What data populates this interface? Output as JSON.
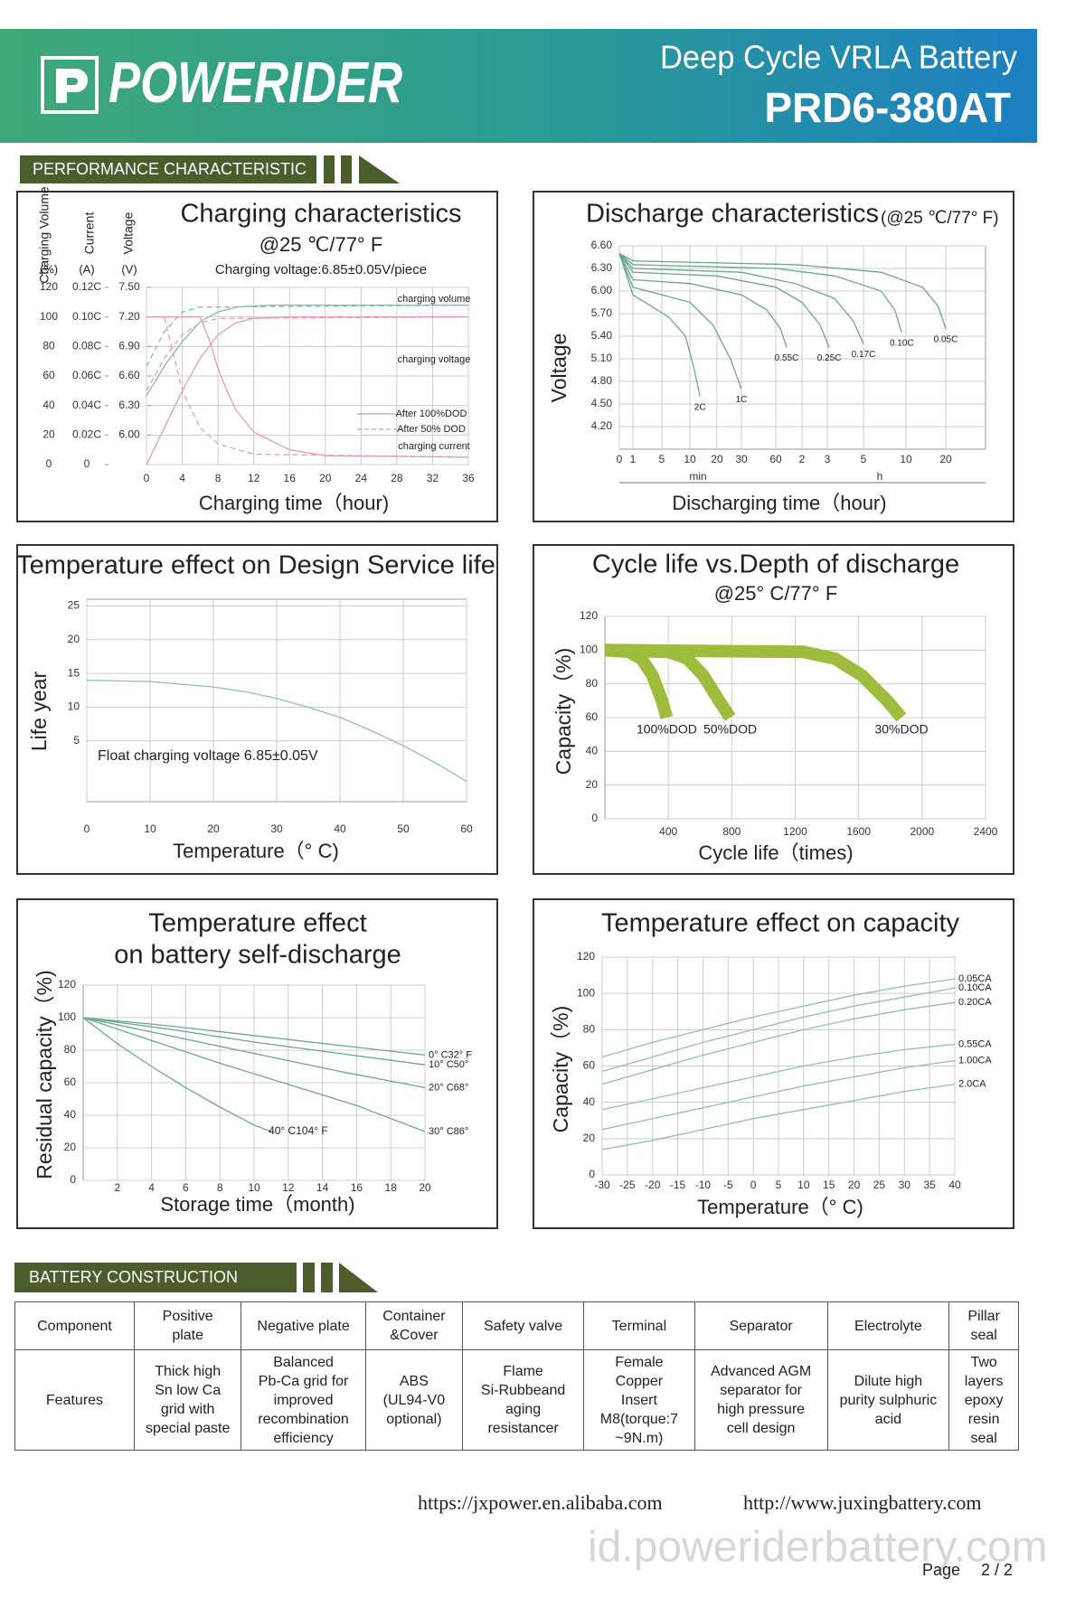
{
  "header": {
    "brand": "POWERIDER",
    "subtitle": "Deep Cycle    VRLA Battery",
    "model": "PRD6-380AT"
  },
  "sections": {
    "performance": "PERFORMANCE    CHARACTERISTIC",
    "construction": "BATTERY    CONSTRUCTION"
  },
  "chart_data": [
    {
      "type": "line",
      "title": "Charging characteristics",
      "subtitle": "@25 ℃/77° F",
      "note": "Charging voltage:6.85±0.05V/piece",
      "xlabel": "Charging time（hour)",
      "xlim": [
        0,
        36
      ],
      "xticks": [
        0,
        4,
        8,
        12,
        16,
        20,
        24,
        28,
        32,
        36
      ],
      "ylabel": "Charging Volume",
      "yunit": "(%)",
      "ylim": [
        0,
        120
      ],
      "yticks": [
        0,
        20,
        40,
        60,
        80,
        100,
        120
      ],
      "y2label": "Current",
      "y2unit": "(A)",
      "y2lim": [
        0,
        0.12
      ],
      "y2ticks": [
        0,
        {
          "value": 0.02,
          "label": "0.02C"
        },
        {
          "value": 0.04,
          "label": "0.04C"
        },
        {
          "value": 0.06,
          "label": "0.06C"
        },
        {
          "value": 0.08,
          "label": "0.08C"
        },
        {
          "value": 0.1,
          "label": "0.10C"
        },
        {
          "value": 0.12,
          "label": "0.12C"
        }
      ],
      "y3label": "Voltage",
      "y3unit": "(V)",
      "y3lim": [
        5.7,
        7.5
      ],
      "y3ticks": [
        {
          "value": 6.0,
          "label": "6.00"
        },
        {
          "value": 6.3,
          "label": "6.30"
        },
        {
          "value": 6.6,
          "label": "6.60"
        },
        {
          "value": 6.9,
          "label": "6.90"
        },
        {
          "value": 7.2,
          "label": "7.20"
        },
        {
          "value": 7.5,
          "label": "7.50"
        }
      ],
      "grid": true,
      "series": [
        {
          "color": "#e79bb7",
          "x": [
            0,
            2,
            4,
            6,
            8,
            10,
            12,
            16,
            36
          ],
          "values": [
            0,
            25,
            50,
            72,
            88,
            96,
            99,
            100,
            100
          ]
        },
        {
          "color": "#e79bb7",
          "dashed": true,
          "x": [
            0,
            2,
            4,
            6,
            8,
            36
          ],
          "values": [
            50,
            72,
            88,
            96,
            99,
            100
          ]
        },
        {
          "color": "#7cc29a",
          "axis": "y3",
          "x": [
            0,
            2,
            4,
            6,
            8,
            10,
            14,
            36
          ],
          "values": [
            6.4,
            6.7,
            6.95,
            7.15,
            7.25,
            7.3,
            7.32,
            7.32
          ]
        },
        {
          "color": "#7cc29a",
          "axis": "y3",
          "dashed": true,
          "x": [
            0,
            2,
            4,
            6,
            36
          ],
          "values": [
            6.7,
            7.05,
            7.25,
            7.3,
            7.32
          ]
        },
        {
          "color": "#e79bb7",
          "axis": "y2",
          "x": [
            0,
            6,
            7,
            8,
            9,
            10,
            12,
            16,
            20,
            36
          ],
          "values": [
            0.1,
            0.1,
            0.085,
            0.065,
            0.05,
            0.037,
            0.022,
            0.01,
            0.006,
            0.005
          ]
        },
        {
          "color": "#e79bb7",
          "axis": "y2",
          "dashed": true,
          "x": [
            0,
            2,
            3,
            4,
            6,
            8,
            12,
            36
          ],
          "values": [
            0.1,
            0.1,
            0.075,
            0.05,
            0.025,
            0.014,
            0.007,
            0.005
          ]
        }
      ],
      "curve_labels": [
        "charging volume",
        "charging voltage",
        "charging current"
      ],
      "style_legend": [
        {
          "label": "After 100%DOD",
          "dashed": false
        },
        {
          "label": "After  50% DOD",
          "dashed": true
        }
      ]
    },
    {
      "type": "line",
      "title": "Discharge characteristics",
      "title_note": "(@25 ℃/77° F)",
      "xlabel": "Discharging time（hour)",
      "ylabel": "Voltage",
      "xscale": "log",
      "x_units": [
        "min",
        "h"
      ],
      "xlim": [
        0,
        2400
      ],
      "xticks": [
        0,
        1,
        5,
        10,
        20,
        30,
        60,
        {
          "value": 120,
          "label": "2"
        },
        {
          "value": 180,
          "label": "3"
        },
        {
          "value": 300,
          "label": "5"
        },
        {
          "value": 600,
          "label": "10"
        },
        {
          "value": 1200,
          "label": "20"
        }
      ],
      "ylim": [
        3.9,
        6.6
      ],
      "yticks": [
        {
          "value": 4.2,
          "label": "4.20"
        },
        {
          "value": 4.5,
          "label": "4.50"
        },
        {
          "value": 4.8,
          "label": "4.80"
        },
        {
          "value": 5.1,
          "label": "5.10"
        },
        {
          "value": 5.4,
          "label": "5.40"
        },
        {
          "value": 5.7,
          "label": "5.70"
        },
        {
          "value": 6.0,
          "label": "6.00"
        },
        {
          "value": 6.3,
          "label": "6.30"
        },
        {
          "value": 6.6,
          "label": "6.60"
        }
      ],
      "grid": true,
      "series": [
        {
          "name": "2C",
          "color": "#6aa88c",
          "x": [
            0,
            1,
            3,
            6,
            9,
            11,
            13
          ],
          "values": [
            6.5,
            5.95,
            5.8,
            5.65,
            5.4,
            5.0,
            4.6
          ]
        },
        {
          "name": "1C",
          "color": "#6aa88c",
          "x": [
            0,
            1,
            5,
            10,
            18,
            25,
            30
          ],
          "values": [
            6.5,
            6.05,
            5.95,
            5.85,
            5.55,
            5.1,
            4.7
          ]
        },
        {
          "name": "0.55C",
          "color": "#6aa88c",
          "x": [
            0,
            1,
            10,
            30,
            50,
            68,
            80
          ],
          "values": [
            6.5,
            6.15,
            6.1,
            5.95,
            5.75,
            5.5,
            5.25
          ]
        },
        {
          "name": "0.25C",
          "color": "#6aa88c",
          "x": [
            0,
            1,
            20,
            60,
            120,
            160,
            185
          ],
          "values": [
            6.5,
            6.25,
            6.2,
            6.05,
            5.85,
            5.55,
            5.25
          ]
        },
        {
          "name": "0.17C",
          "color": "#6aa88c",
          "x": [
            0,
            1,
            30,
            100,
            200,
            260,
            300
          ],
          "values": [
            6.5,
            6.3,
            6.25,
            6.1,
            5.9,
            5.6,
            5.3
          ]
        },
        {
          "name": "0.10C",
          "color": "#6aa88c",
          "x": [
            0,
            1,
            60,
            200,
            400,
            500,
            560
          ],
          "values": [
            6.5,
            6.35,
            6.3,
            6.2,
            6.0,
            5.75,
            5.45
          ]
        },
        {
          "name": "0.05C",
          "color": "#6aa88c",
          "x": [
            0,
            1,
            100,
            400,
            800,
            1050,
            1200
          ],
          "values": [
            6.5,
            6.4,
            6.35,
            6.25,
            6.05,
            5.8,
            5.5
          ]
        }
      ]
    },
    {
      "type": "line",
      "title": "Temperature effect on Design Service life",
      "xlabel": "Temperature（° C)",
      "ylabel": "Life year",
      "annotation": "Float charging voltage  6.85±0.05V",
      "xlim": [
        0,
        60
      ],
      "xticks": [
        0,
        10,
        20,
        30,
        40,
        50,
        60
      ],
      "ylim": [
        -4,
        26
      ],
      "yticks": [
        5,
        10,
        15,
        20,
        25
      ],
      "grid": true,
      "series": [
        {
          "color": "#8fbfb0",
          "x": [
            0,
            10,
            20,
            25,
            30,
            35,
            40,
            45,
            50,
            55,
            60
          ],
          "values": [
            14,
            13.8,
            13,
            12.3,
            11.3,
            10,
            8.5,
            6.5,
            4.3,
            1.8,
            -1
          ]
        }
      ]
    },
    {
      "type": "line",
      "title": "Cycle life vs.Depth of discharge",
      "subtitle": "@25° C/77° F",
      "xlabel": "Cycle life（times)",
      "ylabel": "Capacity（%)",
      "xlim": [
        0,
        2400
      ],
      "xticks": [
        400,
        800,
        1200,
        1600,
        2000,
        2400
      ],
      "ylim": [
        0,
        120
      ],
      "yticks": [
        0,
        20,
        40,
        60,
        80,
        100,
        120
      ],
      "grid": true,
      "line_width": 14,
      "series": [
        {
          "name": "100%DOD",
          "color": "#9fbd3c",
          "x": [
            0,
            150,
            230,
            300,
            360,
            390
          ],
          "values": [
            100,
            99,
            95,
            85,
            70,
            60
          ]
        },
        {
          "name": "50%DOD",
          "color": "#9fbd3c",
          "x": [
            0,
            400,
            520,
            620,
            720,
            790
          ],
          "values": [
            100,
            99,
            95,
            85,
            70,
            60
          ]
        },
        {
          "name": "30%DOD",
          "color": "#9fbd3c",
          "x": [
            0,
            1250,
            1450,
            1620,
            1780,
            1870
          ],
          "values": [
            100,
            99,
            95,
            85,
            70,
            60
          ]
        }
      ]
    },
    {
      "type": "line",
      "title": [
        "Temperature effect",
        "on battery self-discharge"
      ],
      "xlabel": "Storage time（month)",
      "ylabel": "Residual capacity（%)",
      "xlim": [
        0,
        20
      ],
      "xticks": [
        2,
        4,
        6,
        8,
        10,
        12,
        14,
        16,
        18,
        20
      ],
      "ylim": [
        0,
        120
      ],
      "yticks": [
        0,
        20,
        40,
        60,
        80,
        100,
        120
      ],
      "grid": true,
      "series": [
        {
          "name": "0° C32° F",
          "color": "#6aa88c",
          "x": [
            0,
            5,
            10,
            15,
            20
          ],
          "values": [
            100,
            95,
            89,
            83,
            77
          ]
        },
        {
          "name": "10° C50°",
          "color": "#6aa88c",
          "x": [
            0,
            5,
            10,
            15,
            20
          ],
          "values": [
            100,
            93,
            85,
            78,
            71
          ]
        },
        {
          "name": "20° C68°",
          "color": "#6aa88c",
          "x": [
            0,
            5,
            10,
            15,
            20
          ],
          "values": [
            100,
            89,
            78,
            67,
            57
          ]
        },
        {
          "name": "30° C86°",
          "color": "#6aa88c",
          "x": [
            0,
            4,
            8,
            12,
            16,
            20
          ],
          "values": [
            100,
            86,
            72,
            59,
            46,
            30
          ]
        },
        {
          "name": "40° C104° F",
          "color": "#6aa88c",
          "x": [
            0,
            2,
            4,
            6,
            8,
            10,
            11
          ],
          "values": [
            100,
            84,
            70,
            57,
            45,
            34,
            30
          ]
        }
      ]
    },
    {
      "type": "line",
      "title": "Temperature effect on capacity",
      "xlabel": "Temperature（° C)",
      "ylabel": "Capacity（%)",
      "xlim": [
        -30,
        40
      ],
      "xticks": [
        -30,
        -25,
        -20,
        -15,
        -10,
        -5,
        0,
        5,
        10,
        15,
        20,
        25,
        30,
        35,
        40
      ],
      "ylim": [
        0,
        120
      ],
      "yticks": [
        0,
        20,
        40,
        60,
        80,
        100,
        120
      ],
      "grid": true,
      "series": [
        {
          "name": "0.05CA",
          "color": "#8fbfb0",
          "x": [
            -30,
            -20,
            -10,
            0,
            10,
            20,
            30,
            40
          ],
          "values": [
            65,
            73,
            80,
            87,
            93,
            99,
            104,
            108
          ]
        },
        {
          "name": "0.10CA",
          "color": "#8fbfb0",
          "x": [
            -30,
            -20,
            -10,
            0,
            10,
            20,
            30,
            40
          ],
          "values": [
            57,
            65,
            73,
            80,
            87,
            93,
            98,
            103
          ]
        },
        {
          "name": "0.20CA",
          "color": "#8fbfb0",
          "x": [
            -30,
            -20,
            -10,
            0,
            10,
            20,
            30,
            40
          ],
          "values": [
            50,
            58,
            66,
            73,
            80,
            86,
            91,
            95
          ]
        },
        {
          "name": "0.55CA",
          "color": "#8fbfb0",
          "x": [
            -30,
            -20,
            -10,
            0,
            10,
            20,
            30,
            40
          ],
          "values": [
            36,
            42,
            48,
            54,
            60,
            65,
            69,
            72
          ]
        },
        {
          "name": "1.00CA",
          "color": "#8fbfb0",
          "x": [
            -30,
            -20,
            -10,
            0,
            10,
            20,
            30,
            40
          ],
          "values": [
            25,
            31,
            37,
            43,
            49,
            54,
            59,
            63
          ]
        },
        {
          "name": "2.0CA",
          "color": "#8fbfb0",
          "x": [
            -30,
            -20,
            -10,
            0,
            10,
            20,
            30,
            40
          ],
          "values": [
            14,
            19,
            25,
            31,
            36,
            41,
            46,
            50
          ]
        }
      ]
    }
  ],
  "table": {
    "header": [
      "Component",
      "Positive\nplate",
      "Negative plate",
      "Container\n&Cover",
      "Safety valve",
      "Terminal",
      "Separator",
      "Electrolyte",
      "Pillar\nseal"
    ],
    "features": [
      "Features",
      "Thick high\nSn low Ca\ngrid with\nspecial paste",
      "Balanced\nPb-Ca grid for\nimproved\nrecombination\nefficiency",
      "ABS\n(UL94-V0\noptional)",
      "Flame\nSi-Rubbeand\naging\nresistancer",
      "Female\nCopper\nInsert\nM8(torque:7\n~9N.m)",
      "Advanced AGM\nseparator for\nhigh pressure\ncell design",
      "Dilute high\npurity sulphuric\nacid",
      "Two\nlayers\nepoxy\nresin\nseal"
    ]
  },
  "footer": {
    "links": [
      "https://jxpower.en.alibaba.com",
      "http://www.juxingbattery.com"
    ],
    "watermark": "id.poweriderbattery.com",
    "page_label": "Page",
    "page_number": "2 / 2"
  }
}
